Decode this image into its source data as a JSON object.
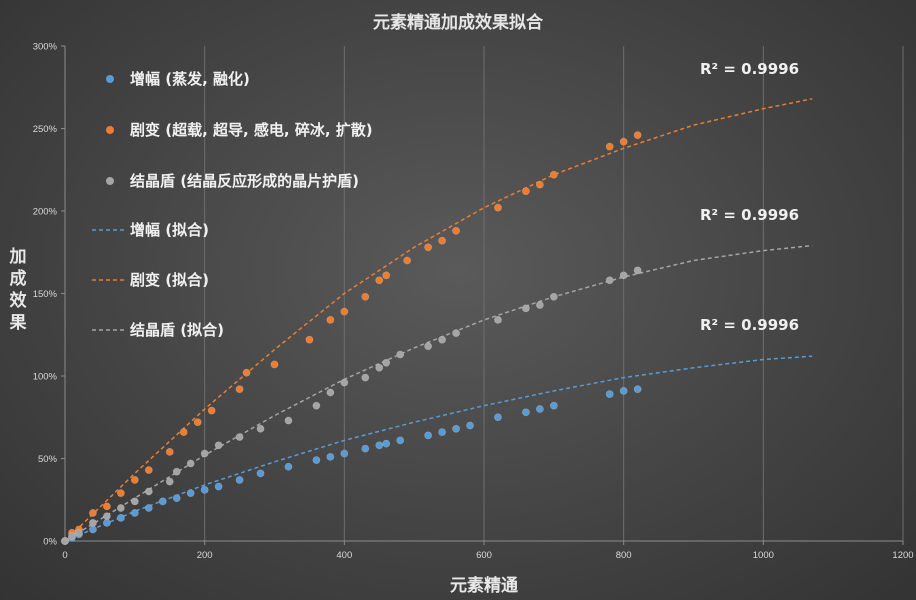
{
  "chart_data": {
    "type": "scatter",
    "title": "元素精通加成效果拟合",
    "xlabel": "元素精通",
    "ylabel": "加成效果",
    "xlim": [
      0,
      1200
    ],
    "ylim": [
      0,
      300
    ],
    "xticks": [
      0,
      200,
      400,
      600,
      800,
      1000,
      1200
    ],
    "yticks": [
      0,
      50,
      100,
      150,
      200,
      250,
      300
    ],
    "ytick_suffix": "%",
    "grid": "vertical",
    "legend_position": "top-left",
    "series": [
      {
        "name": "增幅 (蒸发, 融化)",
        "kind": "points",
        "color": "#5b9bd5",
        "x": [
          0,
          10,
          20,
          40,
          60,
          80,
          100,
          120,
          140,
          160,
          180,
          200,
          220,
          250,
          280,
          320,
          360,
          380,
          400,
          430,
          450,
          460,
          480,
          520,
          540,
          560,
          580,
          620,
          660,
          680,
          700,
          780,
          800,
          820
        ],
        "y": [
          0,
          2,
          4,
          7,
          11,
          14,
          17,
          20,
          24,
          26,
          29,
          31,
          33,
          37,
          41,
          45,
          49,
          51,
          53,
          56,
          58,
          59,
          61,
          64,
          66,
          68,
          70,
          75,
          78,
          80,
          82,
          89,
          91,
          92
        ]
      },
      {
        "name": "剧变 (超载, 超导, 感电, 碎冰, 扩散)",
        "kind": "points",
        "color": "#ed7d31",
        "x": [
          0,
          10,
          20,
          40,
          60,
          80,
          100,
          120,
          150,
          170,
          190,
          210,
          250,
          260,
          300,
          350,
          380,
          400,
          430,
          450,
          460,
          490,
          520,
          540,
          560,
          620,
          660,
          680,
          700,
          780,
          800,
          820
        ],
        "y": [
          0,
          5,
          7,
          17,
          21,
          29,
          37,
          43,
          54,
          66,
          72,
          79,
          92,
          102,
          107,
          122,
          134,
          139,
          148,
          158,
          161,
          170,
          178,
          182,
          188,
          202,
          212,
          216,
          222,
          239,
          242,
          246
        ]
      },
      {
        "name": "结晶盾 (结晶反应形成的晶片护盾)",
        "kind": "points",
        "color": "#a5a5a5",
        "x": [
          0,
          10,
          20,
          40,
          60,
          80,
          100,
          120,
          150,
          160,
          180,
          200,
          220,
          250,
          280,
          320,
          360,
          380,
          400,
          430,
          450,
          460,
          480,
          520,
          540,
          560,
          620,
          660,
          680,
          700,
          780,
          800,
          820
        ],
        "y": [
          0,
          3,
          5,
          11,
          15,
          20,
          24,
          30,
          36,
          42,
          47,
          53,
          58,
          63,
          68,
          73,
          82,
          90,
          96,
          99,
          105,
          108,
          113,
          118,
          122,
          126,
          134,
          141,
          143,
          148,
          158,
          161,
          164
        ]
      },
      {
        "name": "增幅 (拟合)",
        "kind": "fit",
        "color": "#5b9bd5",
        "r2": "R² = 0.9996",
        "x": [
          0,
          100,
          200,
          300,
          400,
          500,
          600,
          700,
          800,
          900,
          1000,
          1070
        ],
        "y": [
          0,
          18,
          34,
          48,
          61,
          72,
          82,
          91,
          99,
          105,
          110,
          112
        ]
      },
      {
        "name": "剧变 (拟合)",
        "kind": "fit",
        "color": "#ed7d31",
        "r2": "R² = 0.9996",
        "x": [
          0,
          100,
          200,
          300,
          400,
          500,
          600,
          700,
          800,
          900,
          1000,
          1070
        ],
        "y": [
          0,
          41,
          80,
          116,
          150,
          178,
          202,
          222,
          238,
          252,
          262,
          268
        ]
      },
      {
        "name": "结晶盾 (拟合)",
        "kind": "fit",
        "color": "#a5a5a5",
        "r2": "R² = 0.9996",
        "x": [
          0,
          100,
          200,
          300,
          400,
          500,
          600,
          700,
          800,
          900,
          1000,
          1070
        ],
        "y": [
          0,
          26,
          52,
          76,
          98,
          117,
          134,
          148,
          160,
          170,
          176,
          179
        ]
      }
    ]
  }
}
